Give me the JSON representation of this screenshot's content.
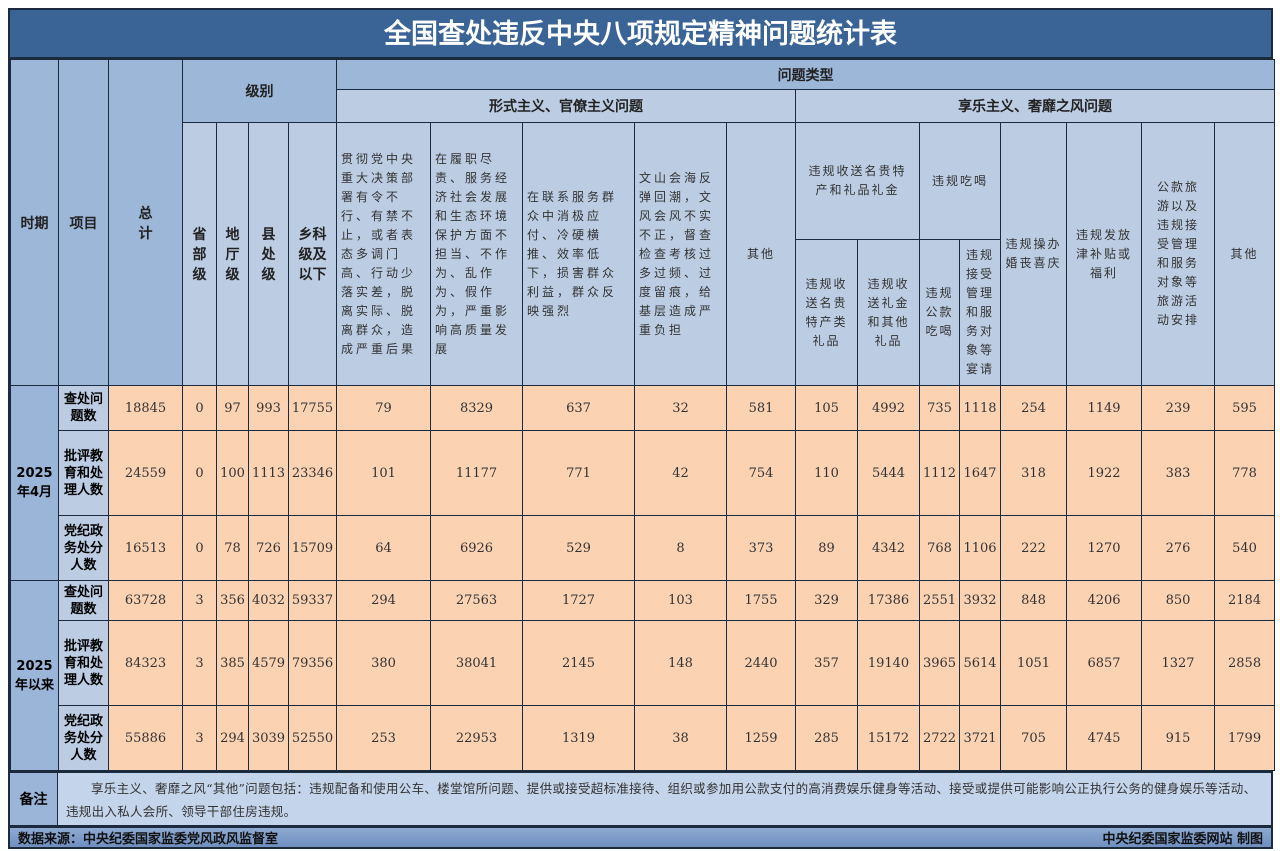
{
  "title": "全国查处违反中央八项规定精神问题统计表",
  "header": {
    "period": "时期",
    "item": "项目",
    "total": "总计",
    "level": "级别",
    "levels": [
      "省部级",
      "地厅级",
      "县处级",
      "乡科级及以下"
    ],
    "problem_type": "问题类型",
    "formalism": "形式主义、官僚主义问题",
    "formalism_cols": [
      "贯彻党中央重大决策部署有令不行、有禁不止，或者表态多调门高、行动少落实差，脱离实际、脱离群众，造成严重后果",
      "在履职尽责、服务经济社会发展和生态环境保护方面不担当、不作为、乱作为、假作为，严重影响高质量发展",
      "在联系服务群众中消极应付、冷硬横推、效率低下，损害群众利益，群众反映强烈",
      "文山会海反弹回潮，文风会风不实不正，督查检查考核过多过频、过度留痕，给基层造成严重负担",
      "其他"
    ],
    "hedonism": "享乐主义、奢靡之风问题",
    "gifts": "违规收送名贵特产和礼品礼金",
    "gifts_sub": [
      "违规收送名贵特产类礼品",
      "违规收送礼金和其他礼品"
    ],
    "dining": "违规吃喝",
    "dining_sub": [
      "违规公款吃喝",
      "违规接受管理和服务对象等宴请"
    ],
    "hedonism_cols": [
      "违规操办婚丧喜庆",
      "违规发放津补贴或福利",
      "公款旅游以及违规接受管理和服务对象等旅游活动安排",
      "其他"
    ]
  },
  "rows": [
    {
      "period": "2025年4月",
      "item": "查处问题数",
      "values": [
        18845,
        0,
        97,
        993,
        17755,
        79,
        8329,
        637,
        32,
        581,
        105,
        4992,
        735,
        1118,
        254,
        1149,
        239,
        595
      ]
    },
    {
      "item": "批评教育和处理人数",
      "values": [
        24559,
        0,
        100,
        1113,
        23346,
        101,
        11177,
        771,
        42,
        754,
        110,
        5444,
        1112,
        1647,
        318,
        1922,
        383,
        778
      ]
    },
    {
      "item": "党纪政务处分人数",
      "values": [
        16513,
        0,
        78,
        726,
        15709,
        64,
        6926,
        529,
        8,
        373,
        89,
        4342,
        768,
        1106,
        222,
        1270,
        276,
        540
      ]
    },
    {
      "period": "2025年以来",
      "item": "查处问题数",
      "values": [
        63728,
        3,
        356,
        4032,
        59337,
        294,
        27563,
        1727,
        103,
        1755,
        329,
        17386,
        2551,
        3932,
        848,
        4206,
        850,
        2184
      ]
    },
    {
      "item": "批评教育和处理人数",
      "values": [
        84323,
        3,
        385,
        4579,
        79356,
        380,
        38041,
        2145,
        148,
        2440,
        357,
        19140,
        3965,
        5614,
        1051,
        6857,
        1327,
        2858
      ]
    },
    {
      "item": "党纪政务处分人数",
      "values": [
        55886,
        3,
        294,
        3039,
        52550,
        253,
        22953,
        1319,
        38,
        1259,
        285,
        15172,
        2722,
        3721,
        705,
        4745,
        915,
        1799
      ]
    }
  ],
  "note": {
    "label": "备注",
    "text": "享乐主义、奢靡之风“其他”问题包括：违规配备和使用公车、楼堂馆所问题、提供或接受超标准接待、组织或参加用公款支付的高消费娱乐健身等活动、接受或提供可能影响公正执行公务的健身娱乐等活动、违规出入私人会所、领导干部住房违规。"
  },
  "source": {
    "left": "数据来源：中央纪委国家监委党风政风监督室",
    "right": "中央纪委国家监委网站 制图"
  }
}
